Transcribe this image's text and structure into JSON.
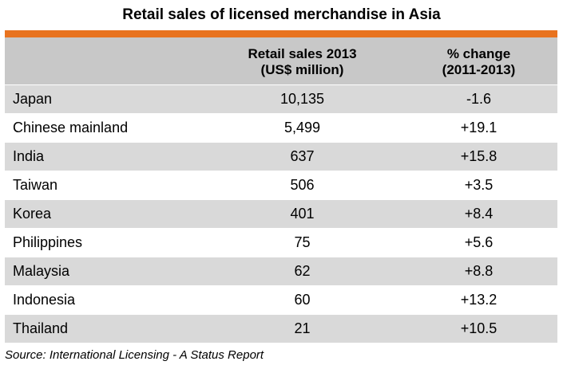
{
  "title": "Retail sales of licensed merchandise in Asia",
  "header": {
    "country": "",
    "sales_line1": "Retail sales 2013",
    "sales_line2": "(US$ million)",
    "change_line1": "% change",
    "change_line2": "(2011-2013)"
  },
  "rows": [
    {
      "country": "Japan",
      "sales": "10,135",
      "change": "-1.6"
    },
    {
      "country": "Chinese mainland",
      "sales": "5,499",
      "change": "+19.1"
    },
    {
      "country": "India",
      "sales": "637",
      "change": "+15.8"
    },
    {
      "country": "Taiwan",
      "sales": "506",
      "change": "+3.5"
    },
    {
      "country": "Korea",
      "sales": "401",
      "change": "+8.4"
    },
    {
      "country": "Philippines",
      "sales": "75",
      "change": "+5.6"
    },
    {
      "country": "Malaysia",
      "sales": "62",
      "change": "+8.8"
    },
    {
      "country": "Indonesia",
      "sales": "60",
      "change": "+13.2"
    },
    {
      "country": "Thailand",
      "sales": "21",
      "change": "+10.5"
    }
  ],
  "source": "Source: International Licensing - A Status Report",
  "colors": {
    "accent_bar": "#e8731f",
    "header_bg": "#c8c8c8",
    "shaded_row_bg": "#d9d9d9"
  }
}
